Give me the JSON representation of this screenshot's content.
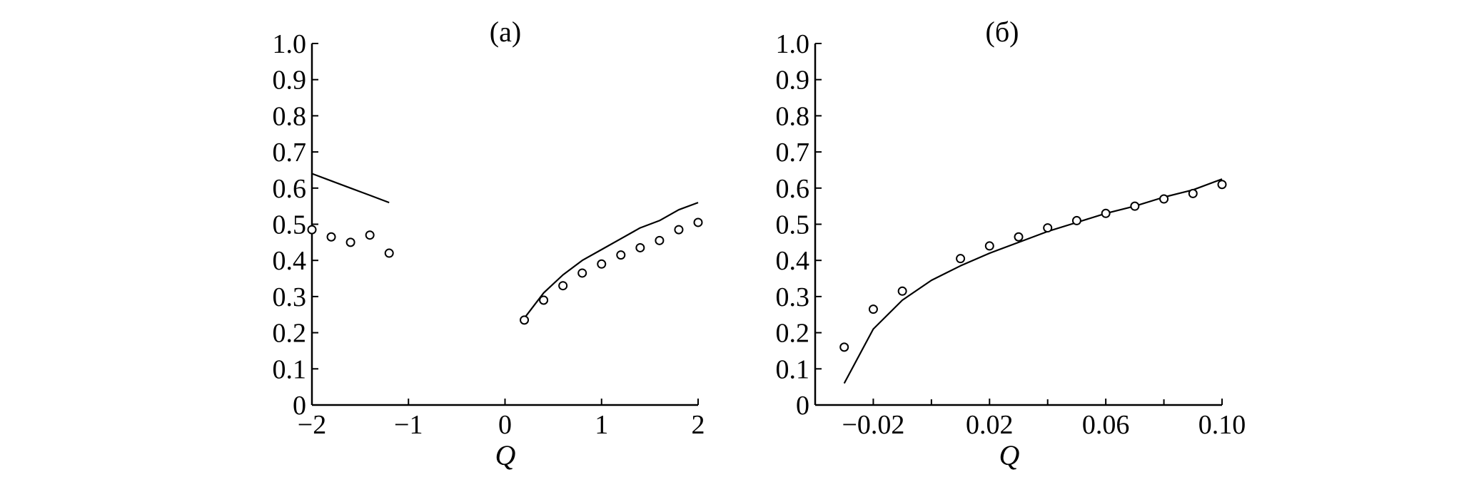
{
  "chart_data": [
    {
      "type": "line",
      "title": "(a)",
      "xlabel": "Q",
      "ylabel": "",
      "xlim": [
        -2,
        2
      ],
      "ylim": [
        0,
        1.0
      ],
      "xticks": [
        -2,
        -1,
        0,
        1,
        2
      ],
      "xtick_labels": [
        "−2",
        "−1",
        "0",
        "1",
        "2"
      ],
      "yticks": [
        0,
        0.1,
        0.2,
        0.3,
        0.4,
        0.5,
        0.6,
        0.7,
        0.8,
        0.9,
        1.0
      ],
      "ytick_labels": [
        "0",
        "0.1",
        "0.2",
        "0.3",
        "0.4",
        "0.5",
        "0.6",
        "0.7",
        "0.8",
        "0.9",
        "1.0"
      ],
      "grid": false,
      "series": [
        {
          "style": "line",
          "x": [
            -2.0,
            -1.8,
            -1.6,
            -1.4,
            -1.2
          ],
          "y": [
            0.64,
            0.62,
            0.6,
            0.58,
            0.56
          ]
        },
        {
          "style": "line",
          "x": [
            0.2,
            0.4,
            0.6,
            0.8,
            1.0,
            1.2,
            1.4,
            1.6,
            1.8,
            2.0
          ],
          "y": [
            0.24,
            0.31,
            0.36,
            0.4,
            0.43,
            0.46,
            0.49,
            0.51,
            0.54,
            0.56
          ]
        },
        {
          "style": "marker",
          "x": [
            -2.0,
            -1.8,
            -1.6,
            -1.4,
            -1.2
          ],
          "y": [
            0.485,
            0.465,
            0.45,
            0.47,
            0.42
          ]
        },
        {
          "style": "marker",
          "x": [
            0.2,
            0.4,
            0.6,
            0.8,
            1.0,
            1.2,
            1.4,
            1.6,
            1.8,
            2.0
          ],
          "y": [
            0.235,
            0.29,
            0.33,
            0.365,
            0.39,
            0.415,
            0.435,
            0.455,
            0.485,
            0.505
          ]
        }
      ]
    },
    {
      "type": "line",
      "title": "(б)",
      "xlabel": "Q",
      "ylabel": "",
      "xlim": [
        -0.04,
        0.1
      ],
      "ylim": [
        0,
        1.0
      ],
      "xticks": [
        -0.02,
        0.02,
        0.06,
        0.1
      ],
      "xtick_labels": [
        "−0.02",
        "0.02",
        "0.06",
        "0.10"
      ],
      "xticks_minor": [
        -0.04,
        0.0,
        0.04,
        0.08
      ],
      "yticks": [
        0,
        0.1,
        0.2,
        0.3,
        0.4,
        0.5,
        0.6,
        0.7,
        0.8,
        0.9,
        1.0
      ],
      "ytick_labels": [
        "0",
        "0.1",
        "0.2",
        "0.3",
        "0.4",
        "0.5",
        "0.6",
        "0.7",
        "0.8",
        "0.9",
        "1.0"
      ],
      "grid": false,
      "series": [
        {
          "style": "line",
          "x": [
            -0.03,
            -0.02,
            -0.01,
            0.0,
            0.01,
            0.02,
            0.03,
            0.04,
            0.05,
            0.06,
            0.07,
            0.08,
            0.09,
            0.1
          ],
          "y": [
            0.06,
            0.21,
            0.29,
            0.345,
            0.385,
            0.42,
            0.45,
            0.48,
            0.505,
            0.53,
            0.55,
            0.575,
            0.595,
            0.625
          ]
        },
        {
          "style": "marker",
          "x": [
            -0.03,
            -0.02,
            -0.01,
            0.01,
            0.02,
            0.03,
            0.04,
            0.05,
            0.06,
            0.07,
            0.08,
            0.09,
            0.1
          ],
          "y": [
            0.16,
            0.265,
            0.315,
            0.405,
            0.44,
            0.465,
            0.49,
            0.51,
            0.53,
            0.55,
            0.57,
            0.585,
            0.61
          ]
        }
      ]
    }
  ]
}
